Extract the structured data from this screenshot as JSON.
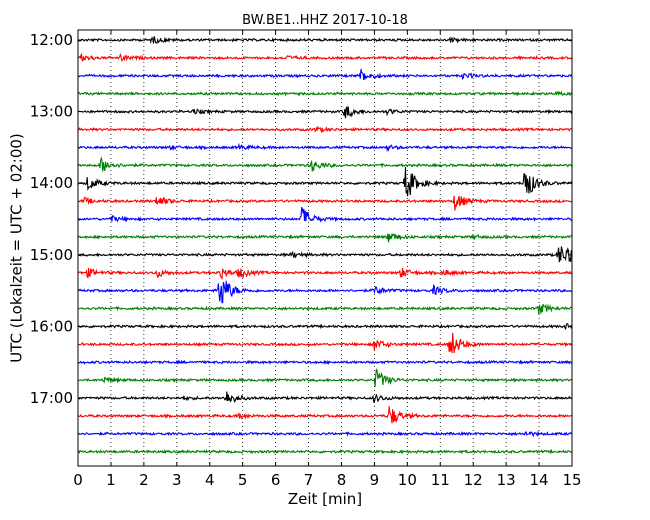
{
  "chart_data": {
    "type": "line",
    "chart_kind": "dayplot (seismogram helicorder)",
    "title": "BW.BE1..HHZ 2017-10-18",
    "xlabel": "Zeit  [min]",
    "ylabel": "UTC (Lokalzeit = UTC + 02:00)",
    "xlim": [
      0,
      15
    ],
    "x_ticks": [
      "0",
      "1",
      "2",
      "3",
      "4",
      "5",
      "6",
      "7",
      "8",
      "9",
      "10",
      "11",
      "12",
      "13",
      "14",
      "15"
    ],
    "y_tick_labels": [
      "12:00",
      "13:00",
      "14:00",
      "15:00",
      "16:00",
      "17:00"
    ],
    "grid": "vertical dotted",
    "line_colors": [
      "#000000",
      "#ff0000",
      "#0000ff",
      "#008000"
    ],
    "traces": [
      {
        "start": "12:00",
        "events": [
          [
            2.25,
            0.5
          ],
          [
            11.3,
            0.25
          ]
        ]
      },
      {
        "start": "12:15",
        "events": [
          [
            0.1,
            0.5
          ],
          [
            1.3,
            0.4
          ],
          [
            6.3,
            0.3
          ]
        ]
      },
      {
        "start": "12:30",
        "events": [
          [
            8.6,
            0.9
          ],
          [
            11.7,
            0.35
          ]
        ]
      },
      {
        "start": "12:45",
        "events": [
          [
            14.5,
            0.2
          ]
        ]
      },
      {
        "start": "13:00",
        "events": [
          [
            3.5,
            0.3
          ],
          [
            8.1,
            1.0
          ],
          [
            9.4,
            0.3
          ]
        ]
      },
      {
        "start": "13:15",
        "events": [
          [
            7.2,
            0.3
          ]
        ]
      },
      {
        "start": "13:30",
        "events": [
          [
            2.8,
            0.2
          ],
          [
            4.9,
            0.3
          ],
          [
            9.4,
            0.3
          ]
        ]
      },
      {
        "start": "13:45",
        "events": [
          [
            0.7,
            1.1
          ],
          [
            7.1,
            0.8
          ]
        ]
      },
      {
        "start": "14:00",
        "events": [
          [
            0.3,
            1.0
          ],
          [
            9.95,
            2.8
          ],
          [
            13.55,
            2.8
          ]
        ]
      },
      {
        "start": "14:15",
        "events": [
          [
            0.2,
            0.4
          ],
          [
            2.4,
            0.8
          ],
          [
            11.45,
            1.3
          ]
        ]
      },
      {
        "start": "14:30",
        "events": [
          [
            1.0,
            0.4
          ],
          [
            6.8,
            1.8
          ]
        ]
      },
      {
        "start": "14:45",
        "events": [
          [
            9.4,
            0.8
          ],
          [
            12.0,
            0.2
          ]
        ]
      },
      {
        "start": "15:00",
        "events": [
          [
            6.5,
            0.4
          ],
          [
            14.6,
            1.6
          ],
          [
            14.9,
            1.0
          ]
        ]
      },
      {
        "start": "15:15",
        "events": [
          [
            0.3,
            0.6
          ],
          [
            2.4,
            0.6
          ],
          [
            4.3,
            0.9
          ],
          [
            4.9,
            0.7
          ],
          [
            9.8,
            0.7
          ],
          [
            11.1,
            0.4
          ]
        ]
      },
      {
        "start": "15:30",
        "events": [
          [
            4.3,
            3.0
          ],
          [
            9.0,
            0.6
          ],
          [
            10.8,
            0.6
          ]
        ]
      },
      {
        "start": "15:45",
        "events": [
          [
            14.0,
            0.8
          ]
        ]
      },
      {
        "start": "16:00",
        "events": [
          [
            14.8,
            0.3
          ]
        ]
      },
      {
        "start": "16:15",
        "events": [
          [
            9.0,
            0.8
          ],
          [
            11.3,
            2.2
          ]
        ]
      },
      {
        "start": "16:30",
        "events": []
      },
      {
        "start": "16:45",
        "events": [
          [
            0.8,
            0.4
          ],
          [
            9.05,
            1.6
          ]
        ]
      },
      {
        "start": "17:00",
        "events": [
          [
            4.5,
            1.1
          ],
          [
            9.0,
            0.6
          ],
          [
            3.2,
            0.2
          ]
        ]
      },
      {
        "start": "17:15",
        "events": [
          [
            4.9,
            0.3
          ],
          [
            9.45,
            1.6
          ]
        ]
      },
      {
        "start": "17:30",
        "events": [
          [
            13.6,
            0.3
          ]
        ]
      },
      {
        "start": "17:45",
        "events": []
      }
    ]
  }
}
